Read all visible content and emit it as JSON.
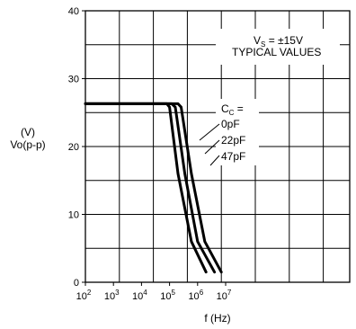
{
  "chart_data": {
    "type": "line",
    "title": "",
    "xlabel": "f (Hz)",
    "ylabel_unit": "(V)",
    "ylabel": "Vo(p-p)",
    "x_log_scale": true,
    "xlim": [
      100,
      10000000
    ],
    "ylim": [
      0,
      40
    ],
    "grid": true,
    "x_ticks": [
      {
        "base": "10",
        "exp": "2"
      },
      {
        "base": "10",
        "exp": "3"
      },
      {
        "base": "10",
        "exp": "4"
      },
      {
        "base": "10",
        "exp": "5"
      },
      {
        "base": "10",
        "exp": "6"
      },
      {
        "base": "10",
        "exp": "7"
      }
    ],
    "y_ticks": [
      "0",
      "10",
      "20",
      "30",
      "40"
    ],
    "annotation": {
      "vs_line_v": "V",
      "vs_line_sub": "S",
      "vs_line_rest": " = ±15V",
      "typical": "TYPICAL VALUES",
      "cc_label": "C",
      "cc_sub": "C",
      "cc_eq": " ="
    },
    "series": [
      {
        "name": "0pF",
        "points": [
          [
            100,
            26.3
          ],
          [
            30000,
            26.3
          ],
          [
            80000,
            26.3
          ],
          [
            100000,
            25.8
          ],
          [
            200000,
            16
          ],
          [
            600000,
            6
          ],
          [
            2000000,
            1.5
          ]
        ]
      },
      {
        "name": "22pF",
        "points": [
          [
            100,
            26.3
          ],
          [
            50000,
            26.3
          ],
          [
            120000,
            26.3
          ],
          [
            160000,
            25.8
          ],
          [
            350000,
            16
          ],
          [
            1000000,
            6
          ],
          [
            4000000,
            1.5
          ]
        ]
      },
      {
        "name": "47pF",
        "points": [
          [
            100,
            26.3
          ],
          [
            80000,
            26.3
          ],
          [
            200000,
            26.3
          ],
          [
            260000,
            25.8
          ],
          [
            600000,
            16
          ],
          [
            1800000,
            6
          ],
          [
            7000000,
            1.5
          ]
        ]
      }
    ]
  }
}
